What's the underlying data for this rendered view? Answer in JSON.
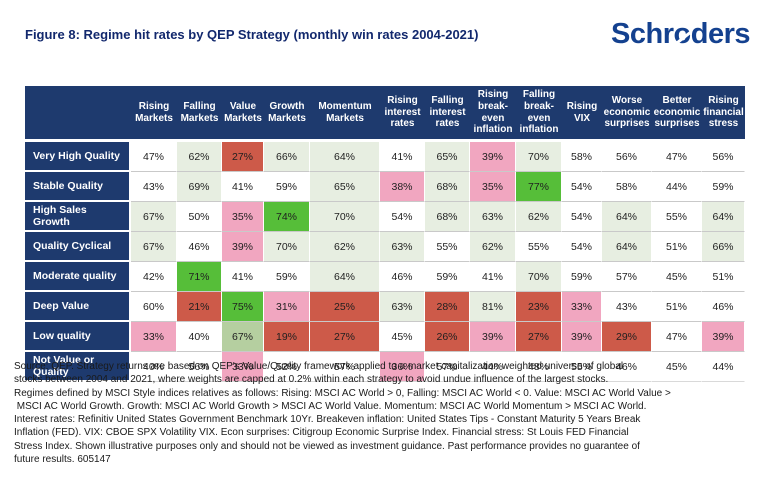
{
  "title": "Figure 8: Regime hit rates by QEP Strategy (monthly win rates 2004-2021)",
  "logo": {
    "part1": "Schr",
    "o": "o",
    "part2": "ders",
    "full": "Schroders"
  },
  "colors": {
    "navy": "#1e3a6e",
    "white": "#ffffff",
    "light_green": "#e7eee1",
    "medium_green": "#b5cfa0",
    "bright_green": "#56be39",
    "pink": "#f1a6c0",
    "red": "#cd5a49"
  },
  "chart_data": {
    "type": "heatmap",
    "title": "Figure 8: Regime hit rates by QEP Strategy (monthly win rates 2004-2021)",
    "unit": "%",
    "value_range": [
      0,
      100
    ],
    "legend": "cell color encodes win rate: red = low, pink = below average, white = mid, light/bright green = high (scaled per column)",
    "columns": [
      "Rising Markets",
      "Falling Markets",
      "Value Markets",
      "Growth Markets",
      "Momentum Markets",
      "Rising interest rates",
      "Falling interest rates",
      "Rising break-even inflation",
      "Falling break-even inflation",
      "Rising VIX",
      "Worse economic surprises",
      "Better economic surprises",
      "Rising financial stress"
    ],
    "rows": [
      {
        "label": "Very High Quality",
        "values": [
          47,
          62,
          27,
          66,
          64,
          41,
          65,
          39,
          70,
          58,
          56,
          47,
          56
        ],
        "colors": [
          "white",
          "light_green",
          "red",
          "light_green",
          "light_green",
          "white",
          "light_green",
          "pink",
          "light_green",
          "white",
          "white",
          "white",
          "white"
        ]
      },
      {
        "label": "Stable Quality",
        "values": [
          43,
          69,
          41,
          59,
          65,
          38,
          68,
          35,
          77,
          54,
          58,
          44,
          59
        ],
        "colors": [
          "white",
          "light_green",
          "white",
          "white",
          "light_green",
          "pink",
          "light_green",
          "pink",
          "bright_green",
          "white",
          "white",
          "white",
          "white"
        ]
      },
      {
        "label": "High Sales Growth",
        "values": [
          67,
          50,
          35,
          74,
          70,
          54,
          68,
          63,
          62,
          54,
          64,
          55,
          64
        ],
        "colors": [
          "light_green",
          "white",
          "pink",
          "bright_green",
          "light_green",
          "white",
          "light_green",
          "light_green",
          "light_green",
          "white",
          "light_green",
          "white",
          "light_green"
        ]
      },
      {
        "label": "Quality Cyclical",
        "values": [
          67,
          46,
          39,
          70,
          62,
          63,
          55,
          62,
          55,
          54,
          64,
          51,
          66
        ],
        "colors": [
          "light_green",
          "white",
          "pink",
          "light_green",
          "light_green",
          "light_green",
          "white",
          "light_green",
          "white",
          "white",
          "light_green",
          "white",
          "light_green"
        ]
      },
      {
        "label": "Moderate quality",
        "values": [
          42,
          71,
          41,
          59,
          64,
          46,
          59,
          41,
          70,
          59,
          57,
          45,
          51
        ],
        "colors": [
          "white",
          "bright_green",
          "white",
          "white",
          "light_green",
          "white",
          "white",
          "white",
          "light_green",
          "white",
          "white",
          "white",
          "white"
        ]
      },
      {
        "label": "Deep Value",
        "values": [
          60,
          21,
          75,
          31,
          25,
          63,
          28,
          81,
          23,
          33,
          43,
          51,
          46
        ],
        "colors": [
          "white",
          "red",
          "bright_green",
          "pink",
          "red",
          "light_green",
          "red",
          "light_green",
          "red",
          "pink",
          "white",
          "white",
          "white"
        ]
      },
      {
        "label": "Low quality",
        "values": [
          33,
          40,
          67,
          19,
          27,
          45,
          26,
          39,
          27,
          39,
          29,
          47,
          39
        ],
        "colors": [
          "pink",
          "white",
          "medium_green",
          "red",
          "red",
          "white",
          "red",
          "pink",
          "red",
          "pink",
          "red",
          "white",
          "pink"
        ]
      },
      {
        "label": "Not Value or Quality",
        "values": [
          40,
          56,
          33,
          52,
          57,
          36,
          57,
          44,
          48,
          55,
          46,
          45,
          44
        ],
        "colors": [
          "white",
          "white",
          "pink",
          "white",
          "white",
          "pink",
          "white",
          "white",
          "white",
          "white",
          "white",
          "white",
          "white"
        ]
      }
    ]
  },
  "footer": {
    "lines": [
      "Source: QEP. Strategy returns are based on QEP's Value/Quality framework applied to a market capitalization weighted universe of global",
      "stocks between 2004 and 2021, where weights are capped at 0.2% within each strategy to avoid undue influence of the largest stocks.",
      "Regimes defined by MSCI Style indices relatives as follows: Rising: MSCI AC World > 0, Falling: MSCI AC World < 0. Value: MSCI AC World Value >",
      " MSCI AC World Growth. Growth: MSCI AC World Growth > MSCI AC World Value. Momentum: MSCI AC World Momentum > MSCI AC World.",
      "Interest rates: Refinitiv United States Government Benchmark 10Yr. Breakeven inflation: United States Tips - Constant Maturity 5 Years Break",
      "Inflation (FED). VIX: CBOE SPX Volatility VIX. Econ surprises: Citigroup Economic Surprise Index. Financial stress: St Louis FED Financial",
      "Stress Index. Shown illustrative purposes only and should not be viewed as investment guidance. Past performance provides no guarantee of",
      "future results. 605147"
    ]
  }
}
